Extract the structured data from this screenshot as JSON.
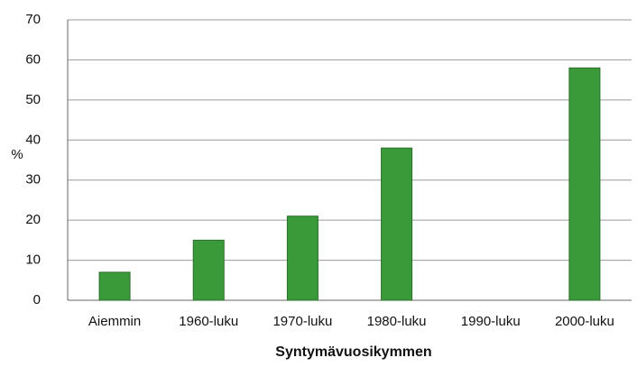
{
  "chart_data": {
    "type": "bar",
    "x_label": "Syntymävuosikymmen",
    "y_label": "%",
    "categories": [
      "Aiemmin",
      "1960-luku",
      "1970-luku",
      "1980-luku",
      "1990-luku",
      "2000-luku"
    ],
    "values": [
      7,
      15,
      21,
      38,
      null,
      58
    ],
    "color": "#3a9a3a",
    "ylim": [
      0,
      70
    ],
    "yticks": [
      0,
      10,
      20,
      30,
      40,
      50,
      60,
      70
    ],
    "grid": true
  }
}
